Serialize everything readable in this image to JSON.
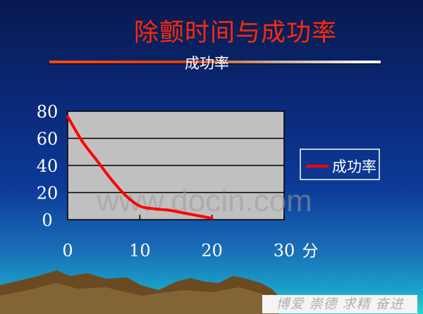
{
  "slide": {
    "title": "除颤时间与成功率",
    "subtitle": "成功率",
    "watermark": "www.docin.com",
    "banner": "博爱 崇德 求精 奋进"
  },
  "colors": {
    "title": "#ff2a0a",
    "series": "#ff0000",
    "plot_bg": "#c0c0c0"
  },
  "chart_data": {
    "type": "line",
    "title": "成功率",
    "xlabel": "分",
    "ylabel": "",
    "xlim": [
      0,
      30
    ],
    "ylim": [
      0,
      80
    ],
    "x_ticks": [
      "0",
      "10",
      "20",
      "30"
    ],
    "y_ticks": [
      "0",
      "20",
      "40",
      "60",
      "80"
    ],
    "grid": true,
    "legend_position": "right",
    "series": [
      {
        "name": "成功率",
        "x": [
          0,
          2,
          4,
          6,
          8,
          10,
          12,
          14,
          16,
          18,
          20
        ],
        "values": [
          76,
          58,
          44,
          30,
          18,
          10,
          8,
          7,
          5,
          3,
          1
        ]
      }
    ]
  }
}
